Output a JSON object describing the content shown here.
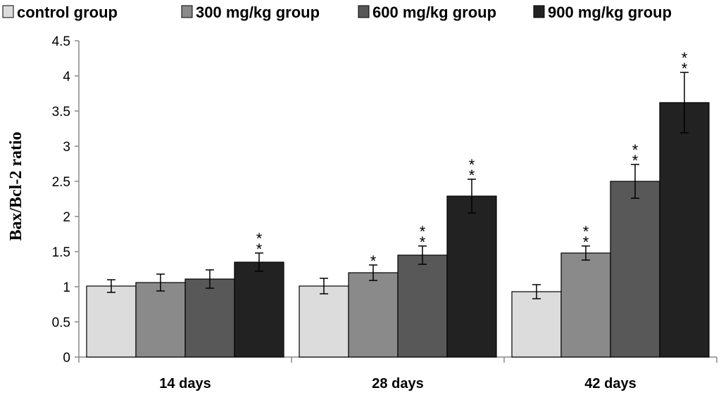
{
  "chart_data": {
    "type": "bar",
    "categories": [
      "14 days",
      "28 days",
      "42 days"
    ],
    "ylabel": "Bax/Bcl-2 ratio",
    "xlabel": "",
    "ylim": [
      0,
      4.5
    ],
    "yticks": [
      "0",
      "0.5",
      "1",
      "1.5",
      "2",
      "2.5",
      "3",
      "3.5",
      "4",
      "4.5"
    ],
    "grid": false,
    "legend_position": "top",
    "series": [
      {
        "name": "control group",
        "color": "#dcdcdc",
        "values": [
          1.01,
          1.01,
          0.93
        ],
        "errors": [
          0.09,
          0.11,
          0.1
        ],
        "significance": [
          "",
          "",
          ""
        ]
      },
      {
        "name": "300 mg/kg group",
        "color": "#8a8a8a",
        "values": [
          1.06,
          1.2,
          1.48
        ],
        "errors": [
          0.12,
          0.11,
          0.1
        ],
        "significance": [
          "",
          "*",
          "**"
        ]
      },
      {
        "name": "600 mg/kg group",
        "color": "#585858",
        "values": [
          1.11,
          1.45,
          2.5
        ],
        "errors": [
          0.13,
          0.13,
          0.24
        ],
        "significance": [
          "",
          "**",
          "**"
        ]
      },
      {
        "name": "900 mg/kg group",
        "color": "#222222",
        "values": [
          1.35,
          2.29,
          3.62
        ],
        "errors": [
          0.13,
          0.24,
          0.43
        ],
        "significance": [
          "**",
          "**",
          "**"
        ]
      }
    ]
  }
}
